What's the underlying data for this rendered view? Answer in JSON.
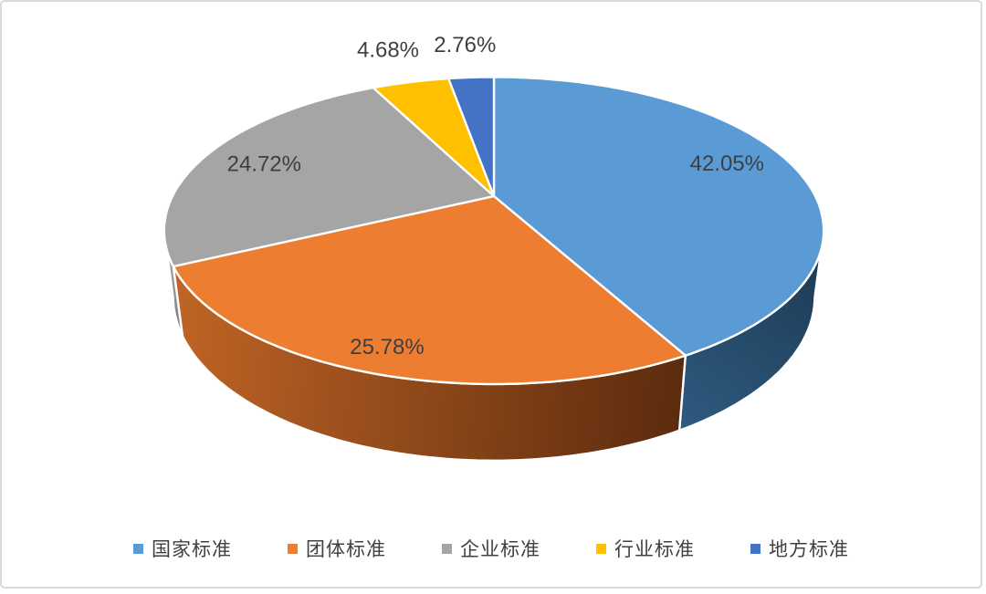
{
  "chart_data": {
    "type": "pie",
    "style": "3d",
    "direction": "clockwise",
    "start_angle_deg": 0,
    "categories": [
      "国家标准",
      "团体标准",
      "企业标准",
      "行业标准",
      "地方标准"
    ],
    "values": [
      42.05,
      25.78,
      24.72,
      4.68,
      2.76
    ],
    "labels": [
      "42.05%",
      "25.78%",
      "24.72%",
      "4.68%",
      "2.76%"
    ],
    "colors": [
      "#5B9BD5",
      "#ED7D31",
      "#A5A5A5",
      "#FFC000",
      "#4472C4"
    ],
    "side_colors": [
      [
        "#2E5A80",
        "#1C3850"
      ],
      [
        "#C06525",
        "#5C2B0E"
      ],
      [
        "#9E9E9E",
        "#787878"
      ]
    ],
    "label_color": "#3F3F3F",
    "separator_color": "#FFFFFF",
    "legend_position": "bottom"
  },
  "canvas": {
    "background": "#FFFFFF",
    "border_color": "#D9D9D9"
  }
}
